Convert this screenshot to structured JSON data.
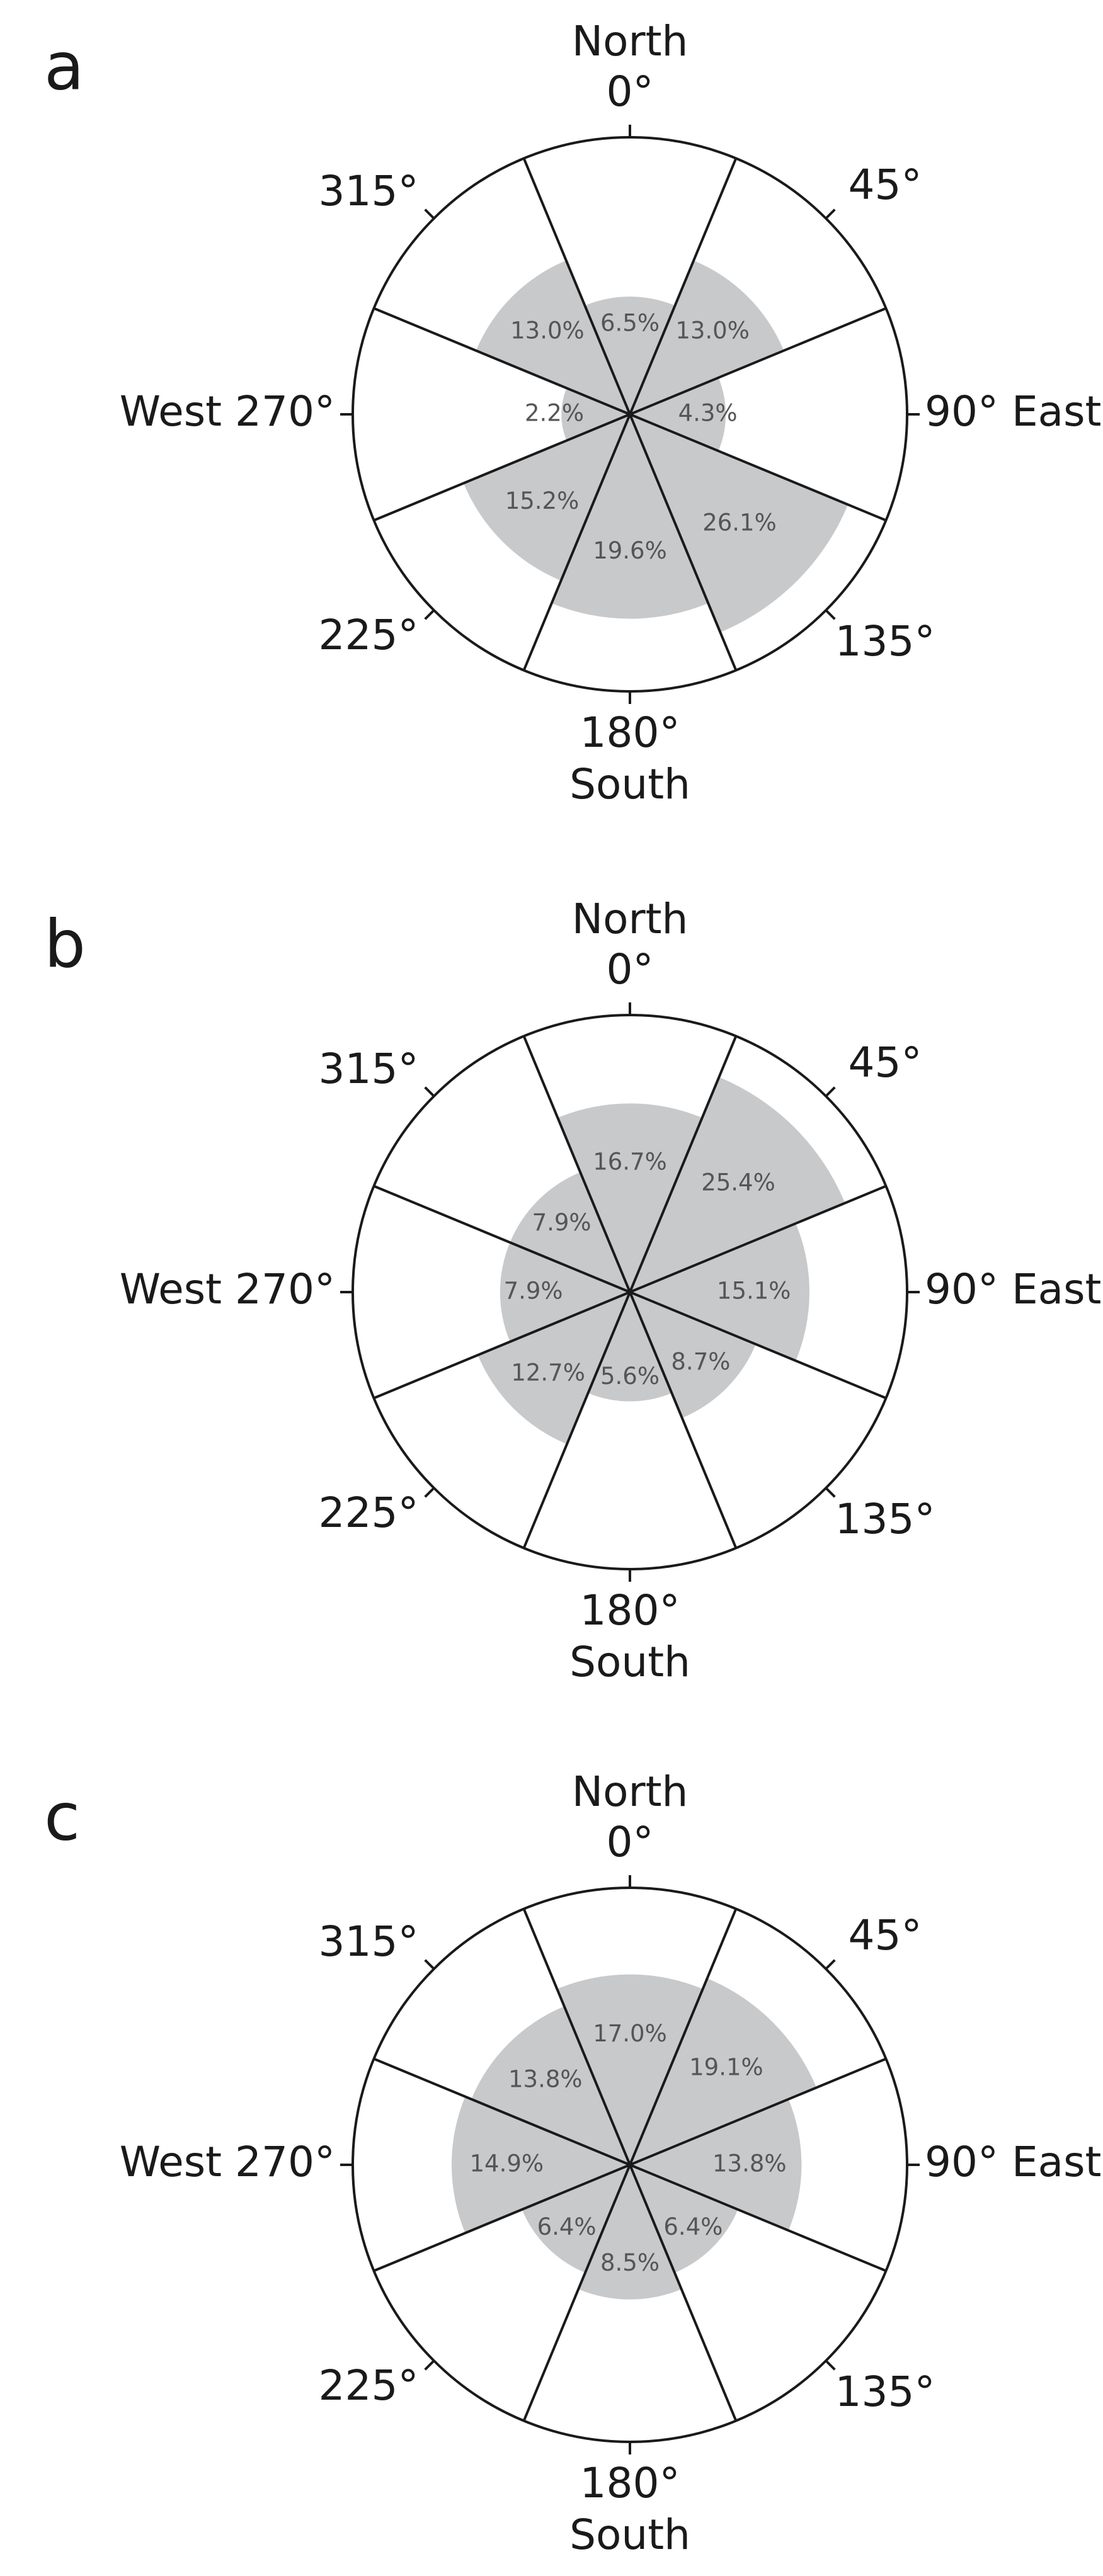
{
  "chart_data": [
    {
      "type": "polar-area",
      "panel_label": "a",
      "title": "",
      "direction_labels": {
        "north": [
          "North",
          "0°"
        ],
        "north_east": "45°",
        "east": "90° East",
        "south_east": "135°",
        "south": [
          "180°",
          "South"
        ],
        "south_west": "225°",
        "west": "West 270°",
        "north_west": "315°"
      },
      "sectors": [
        {
          "center_deg": 0,
          "value": 6.5,
          "label": "6.5%"
        },
        {
          "center_deg": 45,
          "value": 13.0,
          "label": "13.0%"
        },
        {
          "center_deg": 90,
          "value": 4.3,
          "label": "4.3%"
        },
        {
          "center_deg": 135,
          "value": 26.1,
          "label": "26.1%"
        },
        {
          "center_deg": 180,
          "value": 19.6,
          "label": "19.6%"
        },
        {
          "center_deg": 225,
          "value": 15.2,
          "label": "15.2%"
        },
        {
          "center_deg": 270,
          "value": 2.2,
          "label": "2.2%"
        },
        {
          "center_deg": 315,
          "value": 13.0,
          "label": "13.0%"
        }
      ],
      "radial_max": 36,
      "fill_color": "#c8c9cb"
    },
    {
      "type": "polar-area",
      "panel_label": "b",
      "title": "",
      "direction_labels": {
        "north": [
          "North",
          "0°"
        ],
        "north_east": "45°",
        "east": "90° East",
        "south_east": "135°",
        "south": [
          "180°",
          "South"
        ],
        "south_west": "225°",
        "west": "West 270°",
        "north_west": "315°"
      },
      "sectors": [
        {
          "center_deg": 0,
          "value": 16.7,
          "label": "16.7%"
        },
        {
          "center_deg": 45,
          "value": 25.4,
          "label": "25.4%"
        },
        {
          "center_deg": 90,
          "value": 15.1,
          "label": "15.1%"
        },
        {
          "center_deg": 135,
          "value": 8.7,
          "label": "8.7%"
        },
        {
          "center_deg": 180,
          "value": 5.6,
          "label": "5.6%"
        },
        {
          "center_deg": 225,
          "value": 12.7,
          "label": "12.7%"
        },
        {
          "center_deg": 270,
          "value": 7.9,
          "label": "7.9%"
        },
        {
          "center_deg": 315,
          "value": 7.9,
          "label": "7.9%"
        }
      ],
      "radial_max": 36,
      "fill_color": "#c8c9cb"
    },
    {
      "type": "polar-area",
      "panel_label": "c",
      "title": "",
      "direction_labels": {
        "north": [
          "North",
          "0°"
        ],
        "north_east": "45°",
        "east": "90° East",
        "south_east": "135°",
        "south": [
          "180°",
          "South"
        ],
        "south_west": "225°",
        "west": "West 270°",
        "north_west": "315°"
      },
      "sectors": [
        {
          "center_deg": 0,
          "value": 17.0,
          "label": "17.0%"
        },
        {
          "center_deg": 45,
          "value": 19.1,
          "label": "19.1%"
        },
        {
          "center_deg": 90,
          "value": 13.8,
          "label": "13.8%"
        },
        {
          "center_deg": 135,
          "value": 6.4,
          "label": "6.4%"
        },
        {
          "center_deg": 180,
          "value": 8.5,
          "label": "8.5%"
        },
        {
          "center_deg": 225,
          "value": 6.4,
          "label": "6.4%"
        },
        {
          "center_deg": 270,
          "value": 14.9,
          "label": "14.9%"
        },
        {
          "center_deg": 315,
          "value": 13.8,
          "label": "13.8%"
        }
      ],
      "radial_max": 36,
      "fill_color": "#c8c9cb"
    }
  ]
}
